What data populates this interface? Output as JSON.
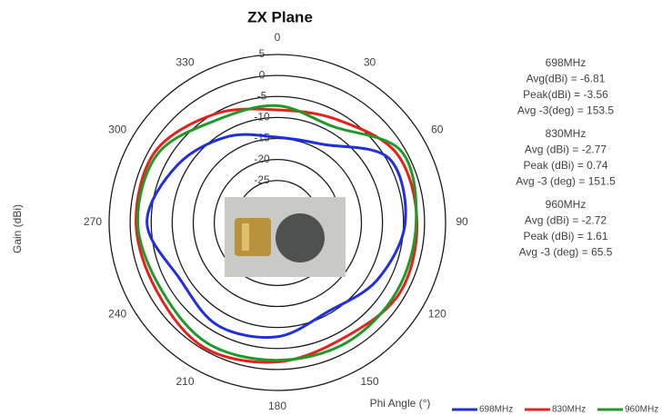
{
  "chart_data": {
    "type": "polar",
    "title": "ZX Plane",
    "y_label": "Gain (dBi)",
    "x_label": "Phi Angle (°)",
    "x": [
      0,
      30,
      60,
      90,
      120,
      150,
      180,
      210,
      240,
      270,
      300,
      330
    ],
    "xticks": [
      0,
      30,
      60,
      90,
      120,
      150,
      180,
      210,
      240,
      270,
      300,
      330
    ],
    "ylim": [
      -35,
      5
    ],
    "yticks": [
      5,
      0,
      -5,
      -10,
      -15,
      -20,
      -25
    ],
    "grid": true,
    "legend": "bottom-right",
    "series": [
      {
        "name": "698MHz",
        "color": "#1f2ee0",
        "values": [
          -14.7,
          -13.5,
          -4.4,
          -4.6,
          -7.6,
          -10.6,
          -7.8,
          -6.7,
          -8.2,
          -4.0,
          -7.6,
          -11.4
        ]
      },
      {
        "name": "830MHz",
        "color": "#e8201c",
        "values": [
          -8.2,
          -6.7,
          -2.2,
          -1.8,
          -1.4,
          -3.3,
          -1.8,
          -0.5,
          -2.0,
          -1.4,
          -1.4,
          -5.2
        ]
      },
      {
        "name": "960MHz",
        "color": "#1e9a2a",
        "values": [
          -7.2,
          -8.6,
          -1.0,
          -2.0,
          -2.2,
          -2.0,
          -2.2,
          -1.8,
          -3.1,
          -1.8,
          -2.2,
          -6.7
        ]
      }
    ],
    "annotations": [
      {
        "title": "698MHz",
        "lines": [
          "Avg(dBi) = -6.81",
          "Peak(dBi) = -3.56",
          "Avg -3(deg) = 153.5"
        ]
      },
      {
        "title": "830MHz",
        "lines": [
          "Avg (dBi) =  -2.77",
          "Peak (dBi) =  0.74",
          "Avg -3 (deg) =  151.5"
        ]
      },
      {
        "title": "960MHz",
        "lines": [
          "Avg (dBi) =  -2.72",
          "Peak (dBi) = 1.61",
          "Avg -3 (deg) = 65.5"
        ]
      }
    ]
  }
}
